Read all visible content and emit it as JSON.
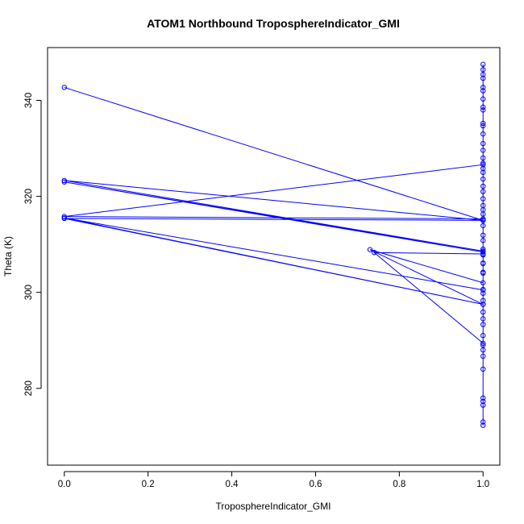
{
  "chart_data": {
    "type": "line",
    "title": "ATOM1 Northbound TroposphereIndicator_GMI",
    "xlabel": "TroposphereIndicator_GMI",
    "ylabel": "Theta (K)",
    "xlim": [
      -0.04,
      1.04
    ],
    "ylim": [
      264,
      351
    ],
    "x_ticks": [
      0.0,
      0.2,
      0.4,
      0.6,
      0.8,
      1.0
    ],
    "x_tick_labels": [
      "0.0",
      "0.2",
      "0.4",
      "0.6",
      "0.8",
      "1.0"
    ],
    "y_ticks": [
      280,
      300,
      320,
      340
    ],
    "y_tick_labels": [
      "280",
      "300",
      "320",
      "340"
    ],
    "grid": false,
    "legend": "none",
    "color": "#0000ff",
    "series": [
      {
        "points": [
          [
            1.0,
            273.0
          ],
          [
            1.0,
            272.3
          ],
          [
            1.0,
            276.5
          ],
          [
            1.0,
            277.3
          ],
          [
            1.0,
            278.0
          ],
          [
            1.0,
            284.0
          ],
          [
            1.0,
            286.7
          ],
          [
            1.0,
            288.0
          ],
          [
            1.0,
            289.0
          ],
          [
            1.0,
            291.0
          ],
          [
            1.0,
            293.3
          ],
          [
            1.0,
            294.5
          ],
          [
            1.0,
            295.9
          ],
          [
            1.0,
            297.5
          ],
          [
            1.0,
            298.3
          ],
          [
            1.0,
            299.8
          ],
          [
            1.0,
            300.6
          ],
          [
            1.0,
            302.0
          ],
          [
            0.73,
            308.9
          ],
          [
            1.0,
            297.5
          ],
          [
            0.0,
            315.5
          ],
          [
            1.0,
            300.5
          ],
          [
            1.0,
            304.0
          ],
          [
            1.0,
            306.1
          ],
          [
            1.0,
            307.8
          ],
          [
            1.0,
            309.0
          ],
          [
            1.0,
            310.8
          ],
          [
            1.0,
            311.9
          ],
          [
            1.0,
            313.9
          ],
          [
            1.0,
            315.3
          ],
          [
            0.0,
            315.8
          ],
          [
            1.0,
            326.6
          ],
          [
            1.0,
            325.0
          ],
          [
            1.0,
            318.1
          ],
          [
            1.0,
            317.2
          ],
          [
            1.0,
            316.3
          ],
          [
            1.0,
            315.0
          ],
          [
            0.0,
            315.4
          ],
          [
            1.0,
            297.5
          ],
          [
            1.0,
            319.5
          ],
          [
            1.0,
            321.0
          ],
          [
            1.0,
            322.1
          ],
          [
            1.0,
            323.6
          ],
          [
            1.0,
            325.8
          ],
          [
            1.0,
            326.9
          ],
          [
            1.0,
            328.0
          ],
          [
            1.0,
            329.6
          ],
          [
            1.0,
            331.0
          ],
          [
            1.0,
            333.0
          ],
          [
            1.0,
            334.7
          ],
          [
            1.0,
            335.2
          ],
          [
            1.0,
            338.0
          ],
          [
            1.0,
            338.6
          ],
          [
            1.0,
            340.3
          ],
          [
            1.0,
            342.0
          ],
          [
            1.0,
            342.7
          ],
          [
            1.0,
            344.6
          ],
          [
            1.0,
            345.4
          ],
          [
            1.0,
            346.4
          ],
          [
            1.0,
            347.5
          ],
          [
            1.0,
            315.0
          ],
          [
            0.0,
            342.7
          ],
          [
            1.0,
            315.0
          ],
          [
            0.0,
            323.3
          ],
          [
            1.0,
            308.6
          ],
          [
            0.0,
            323.0
          ],
          [
            1.0,
            308.4
          ],
          [
            1.0,
            306.0
          ],
          [
            1.0,
            304.2
          ],
          [
            1.0,
            308.0
          ],
          [
            0.74,
            308.3
          ],
          [
            1.0,
            289.4
          ]
        ]
      }
    ]
  }
}
